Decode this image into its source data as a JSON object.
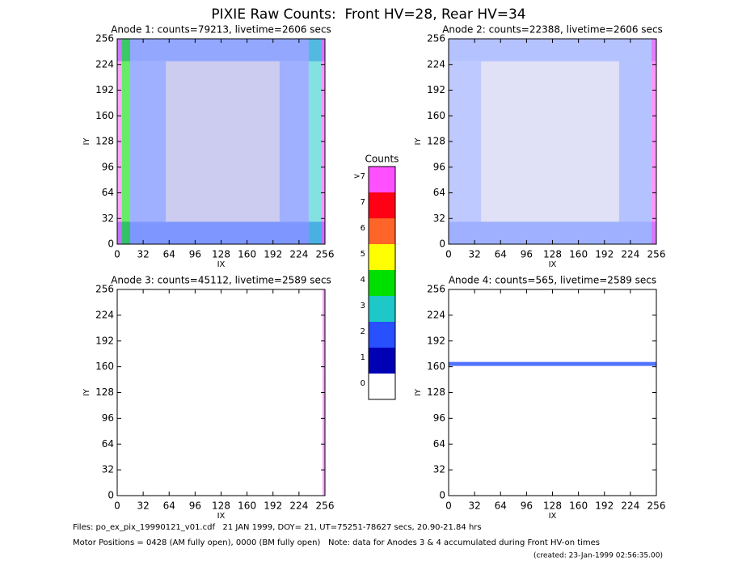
{
  "title": "PIXIE Raw Counts:  Front HV=28, Rear HV=34",
  "chart_data": [
    {
      "type": "heatmap",
      "title": "Anode 1: counts=79213, livetime=2606 secs",
      "xlabel": "IX",
      "ylabel": "IY",
      "xlim": [
        0,
        256
      ],
      "ylim": [
        0,
        256
      ],
      "xticks": [
        0,
        32,
        64,
        96,
        128,
        160,
        192,
        224,
        256
      ],
      "yticks": [
        0,
        32,
        64,
        96,
        128,
        160,
        192,
        224,
        256
      ],
      "regions": [
        {
          "x": [
            60,
            200
          ],
          "y": [
            28,
            228
          ],
          "level": 1,
          "density": 0.2
        },
        {
          "x": [
            16,
            60
          ],
          "y": [
            28,
            228
          ],
          "level": 2,
          "density": 0.45
        },
        {
          "x": [
            200,
            236
          ],
          "y": [
            28,
            228
          ],
          "level": 2,
          "density": 0.45
        },
        {
          "x": [
            0,
            256
          ],
          "y": [
            0,
            28
          ],
          "level": 2,
          "density": 0.6
        },
        {
          "x": [
            0,
            256
          ],
          "y": [
            228,
            256
          ],
          "level": 2,
          "density": 0.5
        },
        {
          "x": [
            6,
            16
          ],
          "y": [
            0,
            256
          ],
          "level": 4,
          "density": 0.6
        },
        {
          "x": [
            0,
            6
          ],
          "y": [
            0,
            256
          ],
          "level": 8,
          "density": 0.5
        },
        {
          "x": [
            236,
            252
          ],
          "y": [
            0,
            256
          ],
          "level": 3,
          "density": 0.55
        },
        {
          "x": [
            252,
            256
          ],
          "y": [
            0,
            256
          ],
          "level": 8,
          "density": 0.6
        }
      ]
    },
    {
      "type": "heatmap",
      "title": "Anode 2: counts=22388, livetime=2606 secs",
      "xlabel": "IX",
      "ylabel": "IY",
      "xlim": [
        0,
        256
      ],
      "ylim": [
        0,
        256
      ],
      "xticks": [
        0,
        32,
        64,
        96,
        128,
        160,
        192,
        224,
        256
      ],
      "yticks": [
        0,
        32,
        64,
        96,
        128,
        160,
        192,
        224,
        256
      ],
      "regions": [
        {
          "x": [
            40,
            210
          ],
          "y": [
            28,
            228
          ],
          "level": 1,
          "density": 0.12
        },
        {
          "x": [
            0,
            40
          ],
          "y": [
            28,
            228
          ],
          "level": 2,
          "density": 0.3
        },
        {
          "x": [
            210,
            250
          ],
          "y": [
            28,
            228
          ],
          "level": 2,
          "density": 0.35
        },
        {
          "x": [
            0,
            256
          ],
          "y": [
            0,
            28
          ],
          "level": 2,
          "density": 0.45
        },
        {
          "x": [
            0,
            256
          ],
          "y": [
            228,
            256
          ],
          "level": 2,
          "density": 0.35
        },
        {
          "x": [
            250,
            256
          ],
          "y": [
            0,
            256
          ],
          "level": 8,
          "density": 0.6
        }
      ]
    },
    {
      "type": "heatmap",
      "title": "Anode 3: counts=45112, livetime=2589 secs",
      "xlabel": "IX",
      "ylabel": "IY",
      "xlim": [
        0,
        256
      ],
      "ylim": [
        0,
        256
      ],
      "xticks": [
        0,
        32,
        64,
        96,
        128,
        160,
        192,
        224,
        256
      ],
      "yticks": [
        0,
        32,
        64,
        96,
        128,
        160,
        192,
        224,
        256
      ],
      "regions": [
        {
          "x": [
            253,
            256
          ],
          "y": [
            0,
            256
          ],
          "level": 8,
          "density": 0.5
        }
      ]
    },
    {
      "type": "heatmap",
      "title": "Anode 4: counts=565, livetime=2589 secs",
      "xlabel": "IX",
      "ylabel": "IY",
      "xlim": [
        0,
        256
      ],
      "ylim": [
        0,
        256
      ],
      "xticks": [
        0,
        32,
        64,
        96,
        128,
        160,
        192,
        224,
        256
      ],
      "yticks": [
        0,
        32,
        64,
        96,
        128,
        160,
        192,
        224,
        256
      ],
      "regions": [
        {
          "x": [
            0,
            256
          ],
          "y": [
            161,
            166
          ],
          "level": 2,
          "density": 0.8
        }
      ]
    }
  ],
  "colorbar": {
    "title": "Counts",
    "levels": [
      {
        "label": "0",
        "color": "#ffffff"
      },
      {
        "label": "1",
        "color": "#0000b4"
      },
      {
        "label": "2",
        "color": "#2850ff"
      },
      {
        "label": "3",
        "color": "#1ec8c8"
      },
      {
        "label": "4",
        "color": "#00e000"
      },
      {
        "label": "5",
        "color": "#ffff00"
      },
      {
        "label": "6",
        "color": "#ff6428"
      },
      {
        "label": "7",
        "color": "#ff0014"
      },
      {
        "label": ">7",
        "color": "#ff50ff"
      }
    ]
  },
  "footer": {
    "files": "Files: po_ex_pix_19990121_v01.cdf   21 JAN 1999, DOY= 21, UT=75251-78627 secs, 20.90-21.84 hrs",
    "motor": "Motor Positions = 0428 (AM fully open), 0000 (BM fully open)   Note: data for Anodes 3 & 4 accumulated during Front HV-on times",
    "created": "(created: 23-Jan-1999 02:56:35.00)"
  }
}
